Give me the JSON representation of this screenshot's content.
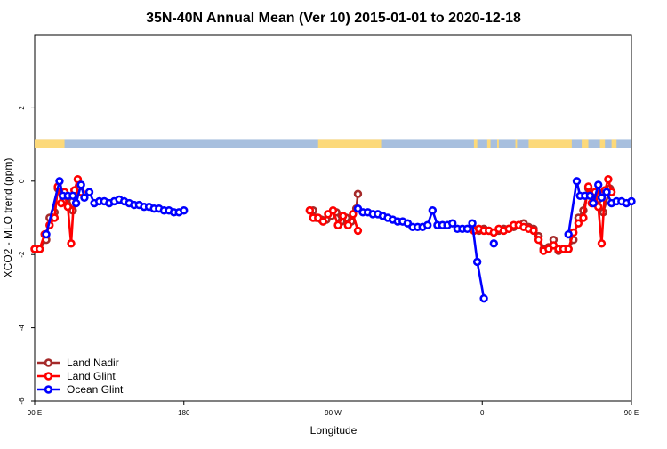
{
  "chart_data": {
    "type": "line",
    "title": "35N-40N Annual Mean (Ver 10)   2015-01-01 to 2020-12-18",
    "xlabel": "Longitude",
    "ylabel": "XCO2 - MLO trend (ppm)",
    "xlim": [
      90,
      450
    ],
    "ylim": [
      -6,
      4
    ],
    "x_ticks": [
      {
        "value": 90,
        "label": "90 E"
      },
      {
        "value": 180,
        "label": "180"
      },
      {
        "value": 270,
        "label": "90 W"
      },
      {
        "value": 360,
        "label": "0"
      },
      {
        "value": 450,
        "label": "90 E"
      }
    ],
    "y_ticks": [
      {
        "value": 2,
        "label": "2"
      },
      {
        "value": 0,
        "label": "0"
      },
      {
        "value": -2,
        "label": "-2"
      },
      {
        "value": -4,
        "label": "-4"
      },
      {
        "value": -6,
        "label": "-6"
      }
    ],
    "land_sea_bar": {
      "y_range": [
        0.9,
        1.15
      ],
      "ocean_color": "#a7bfde",
      "land_color": "#fcd97a",
      "land_segments": [
        [
          90,
          108
        ],
        [
          261,
          299
        ],
        [
          355,
          357
        ],
        [
          363,
          365
        ],
        [
          369,
          370
        ],
        [
          380,
          381
        ],
        [
          388,
          414
        ],
        [
          420,
          424
        ],
        [
          431,
          434
        ],
        [
          438,
          441
        ]
      ]
    },
    "legend_position": "bottom-left",
    "series": [
      {
        "name": "Land Nadir",
        "color": "#a52a2a",
        "segments": [
          [
            [
              90,
              -1.85
            ],
            [
              93,
              -1.85
            ],
            [
              97,
              -1.6
            ],
            [
              99,
              -1.0
            ],
            [
              102,
              -0.85
            ],
            [
              104,
              -0.2
            ],
            [
              108,
              -0.5
            ],
            [
              110,
              -0.45
            ],
            [
              113,
              -0.8
            ],
            [
              117,
              -0.2
            ]
          ],
          [
            [
              256,
              -0.8
            ],
            [
              258,
              -0.8
            ],
            [
              260,
              -1.0
            ],
            [
              263,
              -1.05
            ],
            [
              266,
              -1.05
            ],
            [
              269,
              -0.95
            ],
            [
              272,
              -0.85
            ],
            [
              275,
              -1.1
            ],
            [
              278,
              -1.0
            ],
            [
              281,
              -1.1
            ],
            [
              284,
              -0.75
            ],
            [
              285,
              -0.35
            ]
          ],
          [
            [
              355,
              -1.3
            ],
            [
              358,
              -1.35
            ],
            [
              361,
              -1.3
            ],
            [
              364,
              -1.35
            ],
            [
              367,
              -1.4
            ],
            [
              370,
              -1.35
            ],
            [
              373,
              -1.3
            ],
            [
              376,
              -1.3
            ],
            [
              379,
              -1.25
            ],
            [
              382,
              -1.2
            ],
            [
              385,
              -1.15
            ],
            [
              388,
              -1.25
            ],
            [
              391,
              -1.3
            ],
            [
              394,
              -1.5
            ],
            [
              397,
              -1.85
            ],
            [
              400,
              -1.8
            ],
            [
              403,
              -1.6
            ],
            [
              406,
              -1.9
            ],
            [
              409,
              -1.85
            ],
            [
              412,
              -1.85
            ],
            [
              415,
              -1.6
            ],
            [
              418,
              -1.0
            ],
            [
              421,
              -0.8
            ],
            [
              424,
              -0.2
            ],
            [
              428,
              -0.45
            ],
            [
              430,
              -0.5
            ],
            [
              433,
              -0.85
            ],
            [
              437,
              -0.2
            ]
          ]
        ]
      },
      {
        "name": "Land Glint",
        "color": "#ff0000",
        "segments": [
          [
            [
              90,
              -1.85
            ],
            [
              93,
              -1.85
            ],
            [
              96,
              -1.45
            ],
            [
              99,
              -1.2
            ],
            [
              102,
              -1.0
            ],
            [
              104,
              -0.15
            ],
            [
              106,
              -0.6
            ],
            [
              108,
              -0.3
            ],
            [
              110,
              -0.7
            ],
            [
              112,
              -1.7
            ],
            [
              114,
              -0.25
            ],
            [
              116,
              0.05
            ],
            [
              118,
              -0.3
            ]
          ],
          [
            [
              256,
              -0.8
            ],
            [
              258,
              -1.0
            ],
            [
              261,
              -1.0
            ],
            [
              264,
              -1.1
            ],
            [
              267,
              -0.9
            ],
            [
              270,
              -0.8
            ],
            [
              273,
              -1.2
            ],
            [
              276,
              -0.95
            ],
            [
              279,
              -1.2
            ],
            [
              282,
              -0.9
            ],
            [
              285,
              -1.35
            ]
          ],
          [
            [
              355,
              -1.35
            ],
            [
              358,
              -1.3
            ],
            [
              361,
              -1.35
            ],
            [
              364,
              -1.35
            ],
            [
              367,
              -1.4
            ],
            [
              370,
              -1.3
            ],
            [
              373,
              -1.35
            ],
            [
              376,
              -1.3
            ],
            [
              379,
              -1.2
            ],
            [
              382,
              -1.2
            ],
            [
              385,
              -1.25
            ],
            [
              388,
              -1.3
            ],
            [
              391,
              -1.35
            ],
            [
              394,
              -1.6
            ],
            [
              397,
              -1.9
            ],
            [
              400,
              -1.85
            ],
            [
              403,
              -1.75
            ],
            [
              406,
              -1.85
            ],
            [
              409,
              -1.85
            ],
            [
              412,
              -1.85
            ],
            [
              415,
              -1.4
            ],
            [
              418,
              -1.15
            ],
            [
              421,
              -1.0
            ],
            [
              424,
              -0.15
            ],
            [
              426,
              -0.6
            ],
            [
              428,
              -0.3
            ],
            [
              430,
              -0.7
            ],
            [
              432,
              -1.7
            ],
            [
              434,
              -0.25
            ],
            [
              436,
              0.05
            ],
            [
              438,
              -0.3
            ]
          ]
        ]
      },
      {
        "name": "Ocean Glint",
        "color": "#0000ff",
        "segments": [
          [
            [
              97,
              -1.45
            ],
            [
              105,
              0.0
            ],
            [
              107,
              -0.4
            ],
            [
              110,
              -0.4
            ],
            [
              113,
              -0.4
            ],
            [
              115,
              -0.6
            ],
            [
              118,
              -0.1
            ],
            [
              120,
              -0.45
            ],
            [
              123,
              -0.3
            ],
            [
              126,
              -0.6
            ],
            [
              129,
              -0.55
            ],
            [
              132,
              -0.55
            ],
            [
              135,
              -0.6
            ],
            [
              138,
              -0.55
            ],
            [
              141,
              -0.5
            ],
            [
              144,
              -0.55
            ],
            [
              147,
              -0.6
            ],
            [
              150,
              -0.65
            ],
            [
              153,
              -0.65
            ],
            [
              156,
              -0.7
            ],
            [
              159,
              -0.7
            ],
            [
              162,
              -0.75
            ],
            [
              165,
              -0.75
            ],
            [
              168,
              -0.8
            ],
            [
              171,
              -0.8
            ],
            [
              174,
              -0.85
            ],
            [
              177,
              -0.85
            ],
            [
              180,
              -0.8
            ]
          ],
          [
            [
              285,
              -0.75
            ],
            [
              288,
              -0.85
            ],
            [
              291,
              -0.85
            ],
            [
              294,
              -0.9
            ],
            [
              297,
              -0.9
            ],
            [
              300,
              -0.95
            ],
            [
              303,
              -1.0
            ],
            [
              306,
              -1.05
            ],
            [
              309,
              -1.1
            ],
            [
              312,
              -1.1
            ],
            [
              315,
              -1.15
            ],
            [
              318,
              -1.25
            ],
            [
              321,
              -1.25
            ],
            [
              324,
              -1.25
            ],
            [
              327,
              -1.2
            ],
            [
              330,
              -0.8
            ],
            [
              333,
              -1.2
            ],
            [
              336,
              -1.2
            ],
            [
              339,
              -1.2
            ],
            [
              342,
              -1.15
            ],
            [
              345,
              -1.3
            ],
            [
              348,
              -1.3
            ],
            [
              351,
              -1.3
            ],
            [
              354,
              -1.15
            ],
            [
              357,
              -2.2
            ],
            [
              361,
              -3.2
            ]
          ],
          [
            [
              367,
              -1.7
            ]
          ],
          [
            [
              412,
              -1.45
            ],
            [
              417,
              0.0
            ],
            [
              419,
              -0.4
            ],
            [
              422,
              -0.4
            ],
            [
              425,
              -0.4
            ],
            [
              427,
              -0.6
            ],
            [
              430,
              -0.1
            ],
            [
              432,
              -0.45
            ],
            [
              435,
              -0.3
            ],
            [
              438,
              -0.6
            ],
            [
              441,
              -0.55
            ],
            [
              444,
              -0.55
            ],
            [
              447,
              -0.6
            ],
            [
              450,
              -0.55
            ]
          ]
        ]
      }
    ]
  }
}
